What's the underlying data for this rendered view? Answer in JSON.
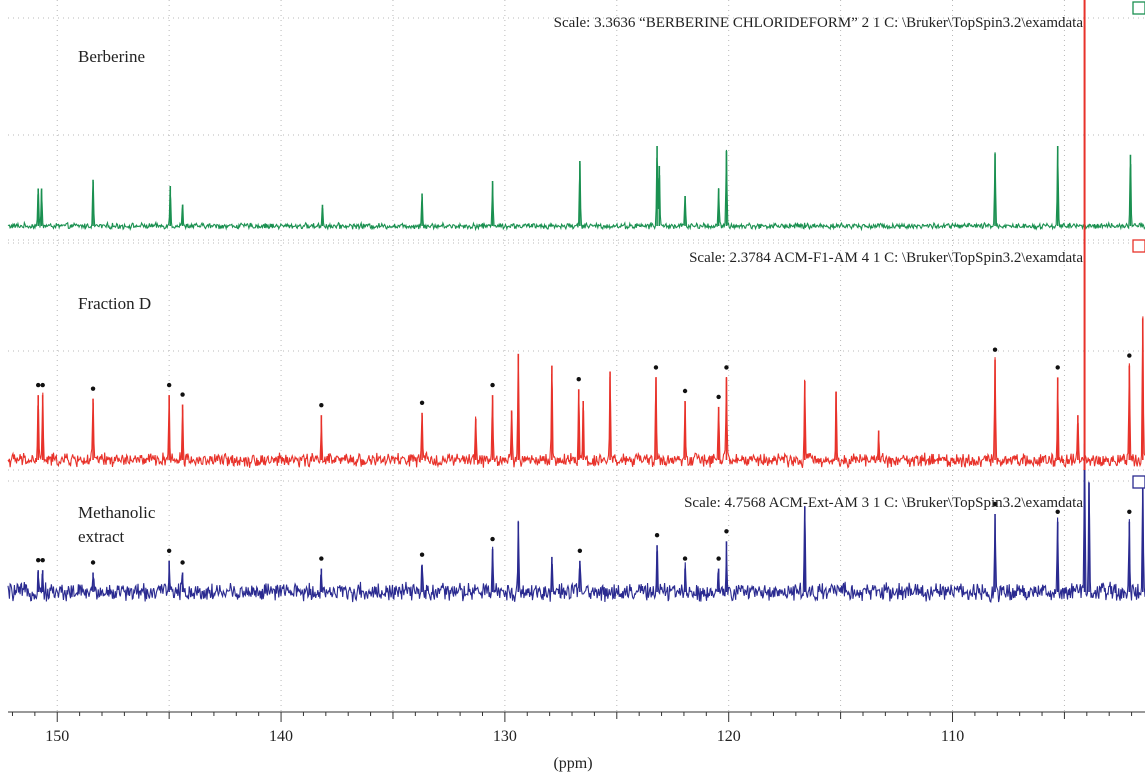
{
  "chart_data": {
    "type": "line",
    "xlabel": "(ppm)",
    "x_reversed": true,
    "xlim": [
      152.2,
      101.4
    ],
    "x_ticks": [
      "150",
      "140",
      "130",
      "120",
      "110"
    ],
    "grid": true,
    "cursor_ppm": 104.1,
    "cursor_color": "#e8322a",
    "series": [
      {
        "name": "Berberine",
        "label_lines": [
          "Berberine"
        ],
        "scale_label": "Scale: 3.3636 “BERBERINE CHLORIDEFORM” 2 1 C: \\Bruker\\TopSpin3.2\\examdata",
        "color": "#1a9050",
        "marker_color": "#1a9050",
        "noise": 0.018,
        "has_dots": false,
        "peaks": [
          {
            "ppm": 150.85,
            "h": 0.3
          },
          {
            "ppm": 150.7,
            "h": 0.3
          },
          {
            "ppm": 148.4,
            "h": 0.37
          },
          {
            "ppm": 144.95,
            "h": 0.32
          },
          {
            "ppm": 144.4,
            "h": 0.17
          },
          {
            "ppm": 138.15,
            "h": 0.17
          },
          {
            "ppm": 133.7,
            "h": 0.26
          },
          {
            "ppm": 130.55,
            "h": 0.36
          },
          {
            "ppm": 126.65,
            "h": 0.52
          },
          {
            "ppm": 123.2,
            "h": 0.64
          },
          {
            "ppm": 123.1,
            "h": 0.48
          },
          {
            "ppm": 121.95,
            "h": 0.24
          },
          {
            "ppm": 120.45,
            "h": 0.3
          },
          {
            "ppm": 120.1,
            "h": 0.6
          },
          {
            "ppm": 108.1,
            "h": 0.58
          },
          {
            "ppm": 105.3,
            "h": 0.64
          },
          {
            "ppm": 102.05,
            "h": 0.57
          }
        ]
      },
      {
        "name": "Fraction D",
        "label_lines": [
          "Fraction D"
        ],
        "scale_label": "Scale: 2.3784 ACM-F1-AM 4 1 C: \\Bruker\\TopSpin3.2\\examdata",
        "color": "#e8322a",
        "marker_color": "#e8322a",
        "noise": 0.045,
        "has_dots": true,
        "peaks": [
          {
            "ppm": 150.85,
            "h": 0.55,
            "dot": true
          },
          {
            "ppm": 150.65,
            "h": 0.55,
            "dot": true
          },
          {
            "ppm": 148.4,
            "h": 0.52,
            "dot": true
          },
          {
            "ppm": 145.0,
            "h": 0.55,
            "dot": true
          },
          {
            "ppm": 144.4,
            "h": 0.47,
            "dot": true
          },
          {
            "ppm": 138.2,
            "h": 0.38,
            "dot": true
          },
          {
            "ppm": 133.7,
            "h": 0.4,
            "dot": true
          },
          {
            "ppm": 131.3,
            "h": 0.35
          },
          {
            "ppm": 130.55,
            "h": 0.55,
            "dot": true
          },
          {
            "ppm": 129.7,
            "h": 0.42
          },
          {
            "ppm": 129.4,
            "h": 0.9
          },
          {
            "ppm": 127.9,
            "h": 0.8
          },
          {
            "ppm": 126.7,
            "h": 0.6,
            "dot": true
          },
          {
            "ppm": 126.5,
            "h": 0.5
          },
          {
            "ppm": 125.3,
            "h": 0.75
          },
          {
            "ppm": 123.25,
            "h": 0.7,
            "dot": true
          },
          {
            "ppm": 121.95,
            "h": 0.5,
            "dot": true
          },
          {
            "ppm": 120.45,
            "h": 0.45,
            "dot": true
          },
          {
            "ppm": 120.1,
            "h": 0.7,
            "dot": true
          },
          {
            "ppm": 116.6,
            "h": 0.67
          },
          {
            "ppm": 115.2,
            "h": 0.58
          },
          {
            "ppm": 113.3,
            "h": 0.25
          },
          {
            "ppm": 108.1,
            "h": 0.85,
            "dot": true
          },
          {
            "ppm": 105.3,
            "h": 0.7,
            "dot": true
          },
          {
            "ppm": 104.4,
            "h": 0.38
          },
          {
            "ppm": 102.1,
            "h": 0.8,
            "dot": true
          },
          {
            "ppm": 101.5,
            "h": 1.2
          }
        ]
      },
      {
        "name": "Methanolic extract",
        "label_lines": [
          "Methanolic",
          "extract"
        ],
        "scale_label": "Scale: 4.7568 ACM-Ext-AM 3 1 C: \\Bruker\\TopSpin3.2\\examdata",
        "color": "#2a2a90",
        "marker_color": "#2a2a90",
        "noise": 0.09,
        "has_dots": true,
        "peaks": [
          {
            "ppm": 150.85,
            "h": 0.28,
            "dot": true
          },
          {
            "ppm": 150.65,
            "h": 0.28,
            "dot": true
          },
          {
            "ppm": 148.4,
            "h": 0.25,
            "dot": true
          },
          {
            "ppm": 145.0,
            "h": 0.4,
            "dot": true
          },
          {
            "ppm": 144.4,
            "h": 0.25,
            "dot": true
          },
          {
            "ppm": 138.2,
            "h": 0.3,
            "dot": true
          },
          {
            "ppm": 133.7,
            "h": 0.35,
            "dot": true
          },
          {
            "ppm": 130.55,
            "h": 0.55,
            "dot": true
          },
          {
            "ppm": 129.4,
            "h": 0.9
          },
          {
            "ppm": 127.9,
            "h": 0.45
          },
          {
            "ppm": 126.65,
            "h": 0.4,
            "dot": true
          },
          {
            "ppm": 123.2,
            "h": 0.6,
            "dot": true
          },
          {
            "ppm": 121.95,
            "h": 0.3,
            "dot": true
          },
          {
            "ppm": 120.45,
            "h": 0.3,
            "dot": true
          },
          {
            "ppm": 120.1,
            "h": 0.65,
            "dot": true
          },
          {
            "ppm": 116.6,
            "h": 1.1
          },
          {
            "ppm": 108.1,
            "h": 1.0,
            "dot": true
          },
          {
            "ppm": 105.3,
            "h": 0.9,
            "dot": true
          },
          {
            "ppm": 104.1,
            "h": 1.9
          },
          {
            "ppm": 103.9,
            "h": 1.4
          },
          {
            "ppm": 102.1,
            "h": 0.9,
            "dot": true
          },
          {
            "ppm": 101.5,
            "h": 1.4
          }
        ]
      }
    ]
  }
}
